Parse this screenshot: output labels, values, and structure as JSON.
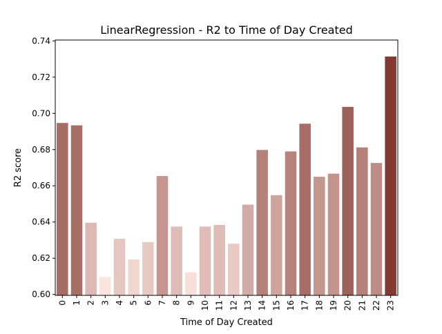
{
  "chart_data": {
    "type": "bar",
    "title": "LinearRegression - R2 to Time of Day Created",
    "xlabel": "Time of Day Created",
    "ylabel": "R2 score",
    "categories": [
      "0",
      "1",
      "2",
      "3",
      "4",
      "5",
      "6",
      "7",
      "8",
      "9",
      "10",
      "11",
      "12",
      "13",
      "14",
      "15",
      "16",
      "17",
      "18",
      "19",
      "20",
      "21",
      "22",
      "23"
    ],
    "values": [
      0.6947,
      0.6934,
      0.6396,
      0.6096,
      0.6307,
      0.6193,
      0.6289,
      0.6654,
      0.6375,
      0.6122,
      0.6375,
      0.6384,
      0.628,
      0.6496,
      0.6798,
      0.6548,
      0.679,
      0.6943,
      0.665,
      0.6667,
      0.7036,
      0.6812,
      0.6726,
      0.7314
    ],
    "yticks": [
      "0.60",
      "0.62",
      "0.64",
      "0.66",
      "0.68",
      "0.70",
      "0.72",
      "0.74"
    ],
    "ylim": [
      0.5995,
      0.7405
    ],
    "grid": false,
    "color_low": "#fbe3de",
    "color_high": "#823a32"
  }
}
